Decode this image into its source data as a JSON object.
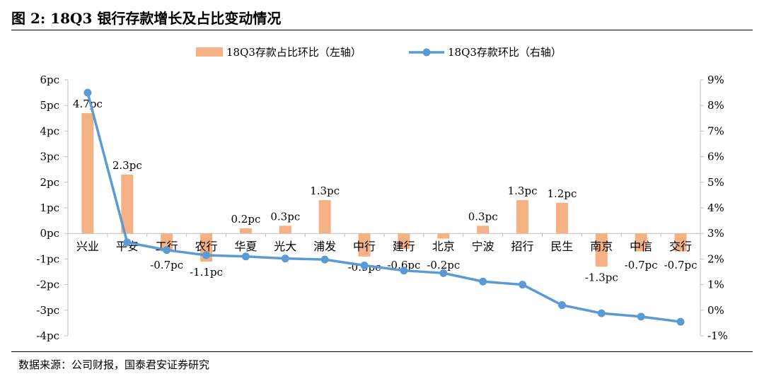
{
  "title": "图 2:  18Q3 银行存款增长及占比变动情况",
  "source": "数据来源：公司财报，国泰君安证券研究",
  "colors": {
    "bar": "#F4B183",
    "line": "#5B9BD5",
    "axis": "#BFBFBF",
    "text": "#000000"
  },
  "chart_data": {
    "type": "bar",
    "categories": [
      "兴业",
      "平安",
      "工行",
      "农行",
      "华夏",
      "光大",
      "浦发",
      "中行",
      "建行",
      "北京",
      "宁波",
      "招行",
      "民生",
      "南京",
      "中信",
      "交行"
    ],
    "series": [
      {
        "name": "18Q3存款占比环比（左轴）",
        "type": "bar",
        "axis": "left",
        "values": [
          4.7,
          2.3,
          -0.7,
          -1.1,
          0.2,
          0.3,
          1.3,
          -0.9,
          -0.6,
          -0.2,
          0.3,
          1.3,
          1.2,
          -1.3,
          -0.7,
          -0.7
        ],
        "labels": [
          "4.7pc",
          "2.3pc",
          "-0.7pc",
          "-1.1pc",
          "0.2pc",
          "0.3pc",
          "1.3pc",
          "-0.9pc",
          "-0.6pc",
          "-0.2pc",
          "0.3pc",
          "1.3pc",
          "1.2pc",
          "-1.3pc",
          "-0.7pc",
          "-0.7pc"
        ]
      },
      {
        "name": "18Q3存款环比（右轴）",
        "type": "line",
        "axis": "right",
        "values": [
          8.5,
          2.65,
          2.35,
          2.15,
          2.1,
          2.02,
          1.98,
          1.75,
          1.55,
          1.45,
          1.12,
          1.0,
          0.2,
          -0.12,
          -0.25,
          -0.45
        ]
      }
    ],
    "y_left": {
      "min": -4,
      "max": 6,
      "ticks": [
        "-4pc",
        "-3pc",
        "-2pc",
        "-1pc",
        "0pc",
        "1pc",
        "2pc",
        "3pc",
        "4pc",
        "5pc",
        "6pc"
      ]
    },
    "y_right": {
      "min": -1,
      "max": 9,
      "ticks": [
        "-1%",
        "0%",
        "1%",
        "2%",
        "3%",
        "4%",
        "5%",
        "6%",
        "7%",
        "8%",
        "9%"
      ]
    },
    "grid": false,
    "legend_position": "top"
  }
}
